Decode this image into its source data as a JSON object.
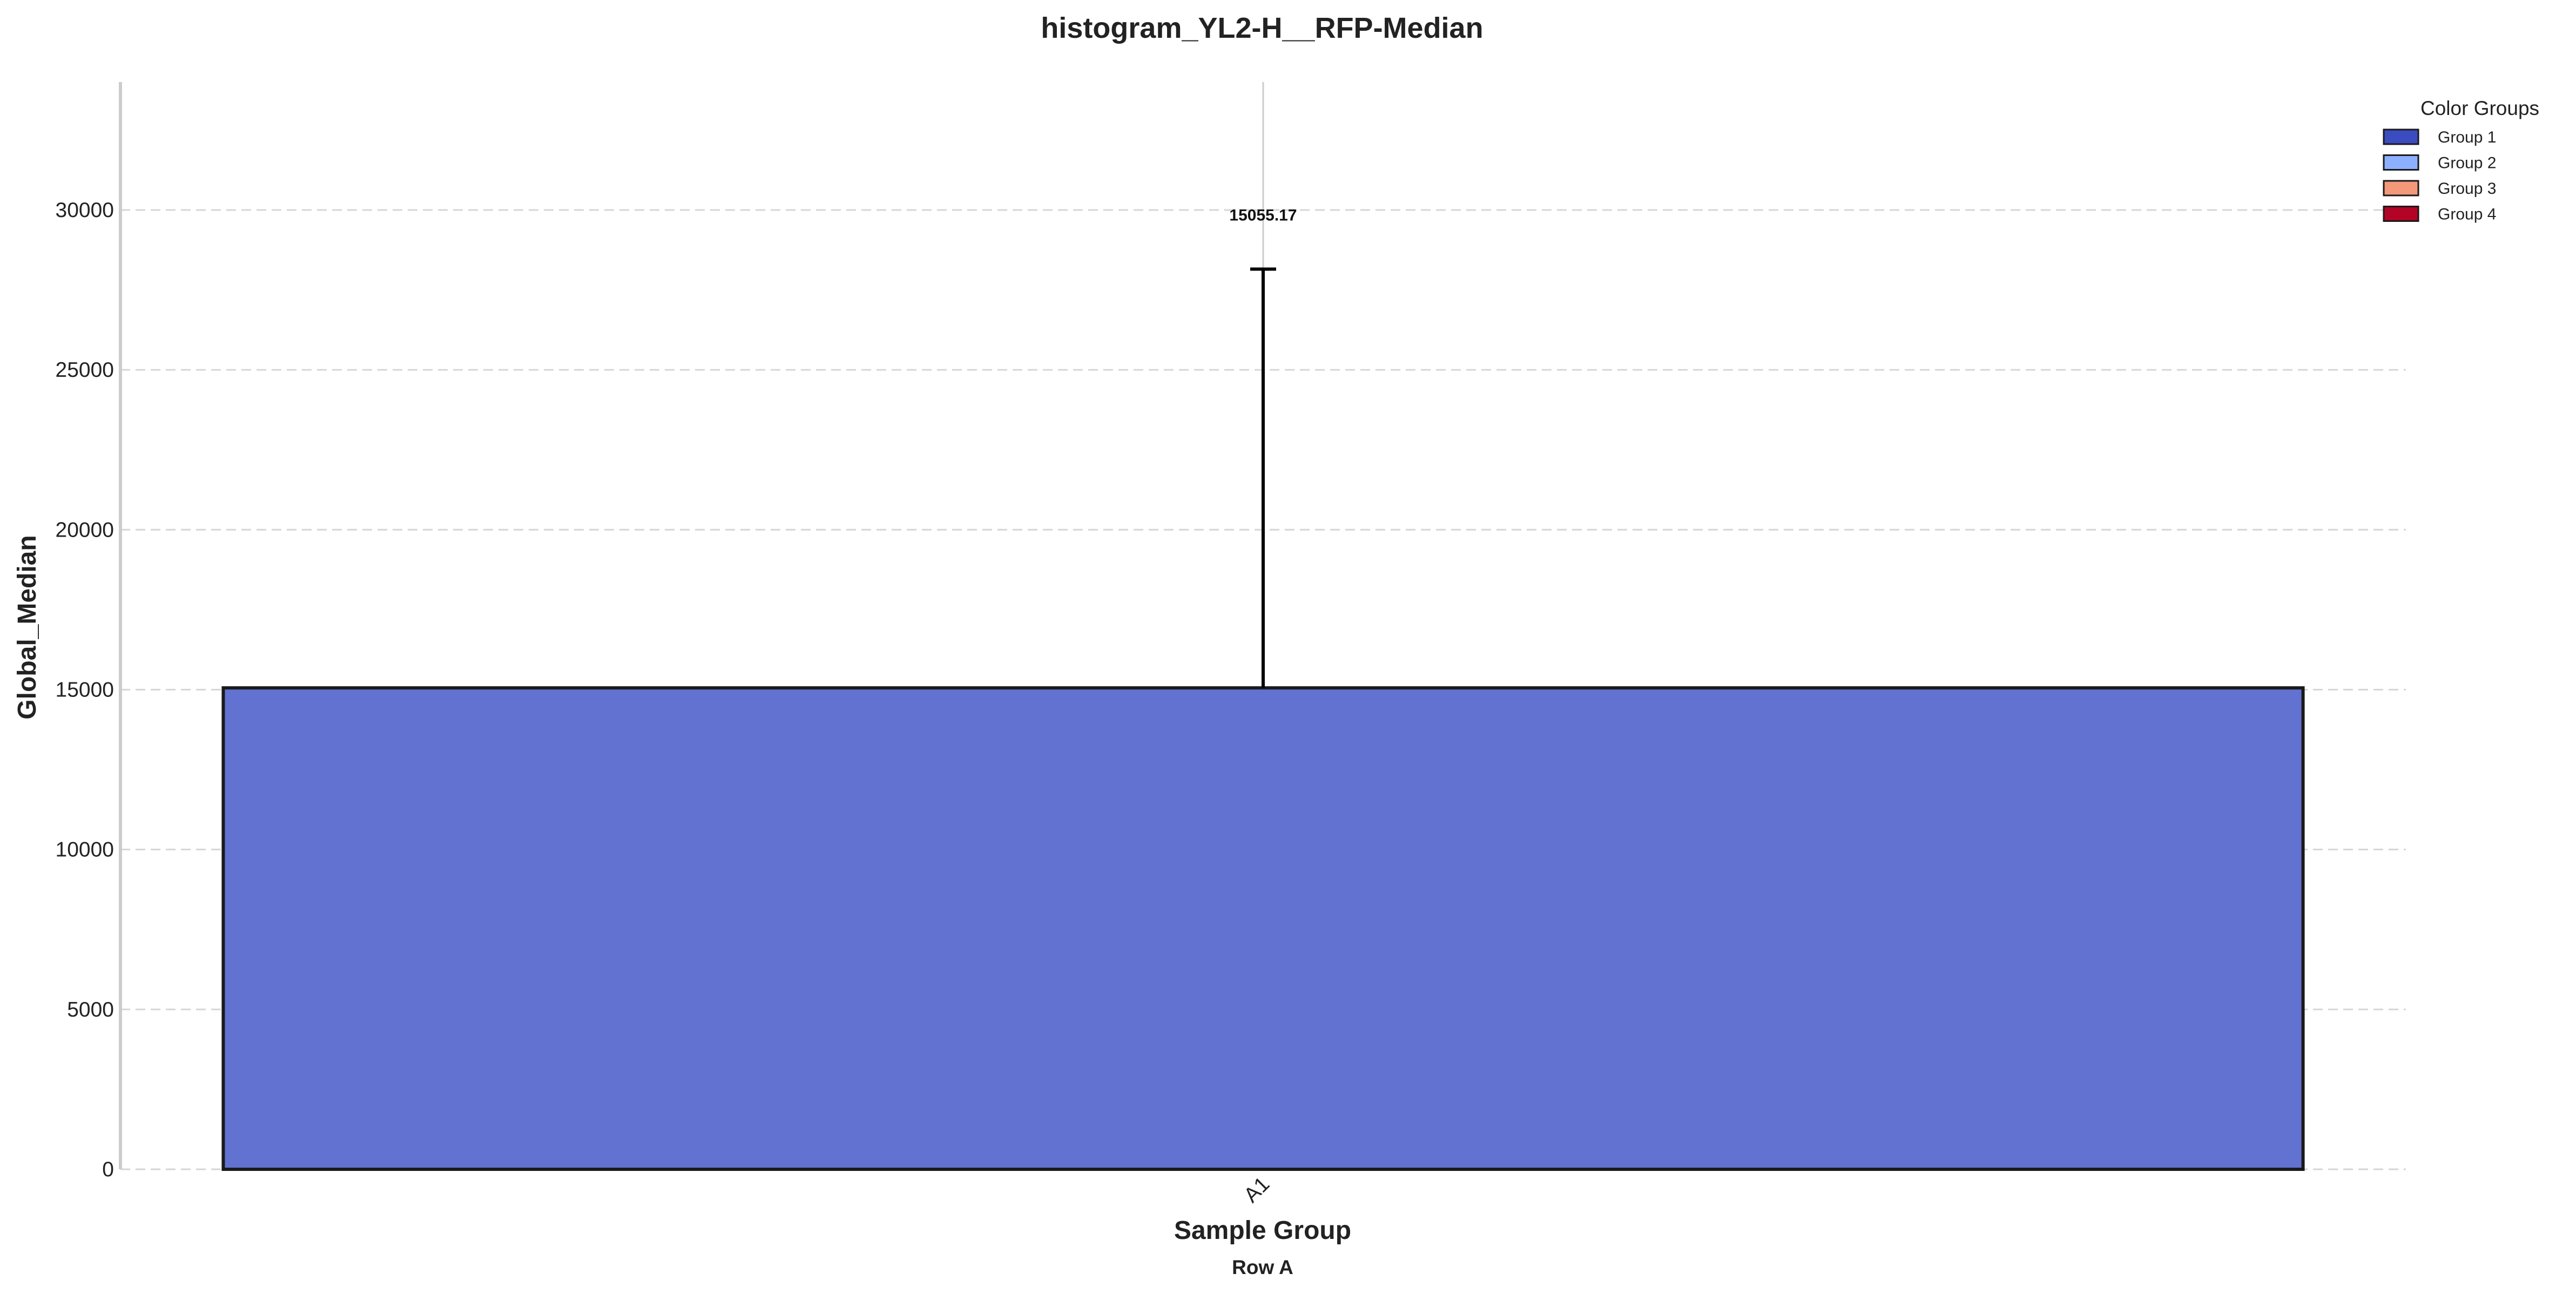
{
  "chart_data": {
    "type": "bar",
    "title": "histogram_YL2-H__RFP-Median",
    "xlabel": "Sample Group",
    "xsublabel": "Row A",
    "ylabel": "Global_Median",
    "categories": [
      "A1"
    ],
    "values": [
      15055.17
    ],
    "error_upper": [
      28150
    ],
    "data_labels": [
      "15055.17"
    ],
    "ylim": [
      0,
      34000
    ],
    "yticks": [
      0,
      5000,
      10000,
      15000,
      20000,
      25000,
      30000
    ],
    "ytick_labels": [
      "0",
      "5000",
      "10000",
      "15000",
      "20000",
      "25000",
      "30000"
    ],
    "grid": true,
    "bar_color": "#6272d0",
    "legend": {
      "title": "Color Groups",
      "placement": "top-right",
      "items": [
        {
          "label": "Group 1",
          "color": "#3b4cc0"
        },
        {
          "label": "Group 2",
          "color": "#8db0fe"
        },
        {
          "label": "Group 3",
          "color": "#f4987a"
        },
        {
          "label": "Group 4",
          "color": "#b40426"
        }
      ]
    }
  }
}
